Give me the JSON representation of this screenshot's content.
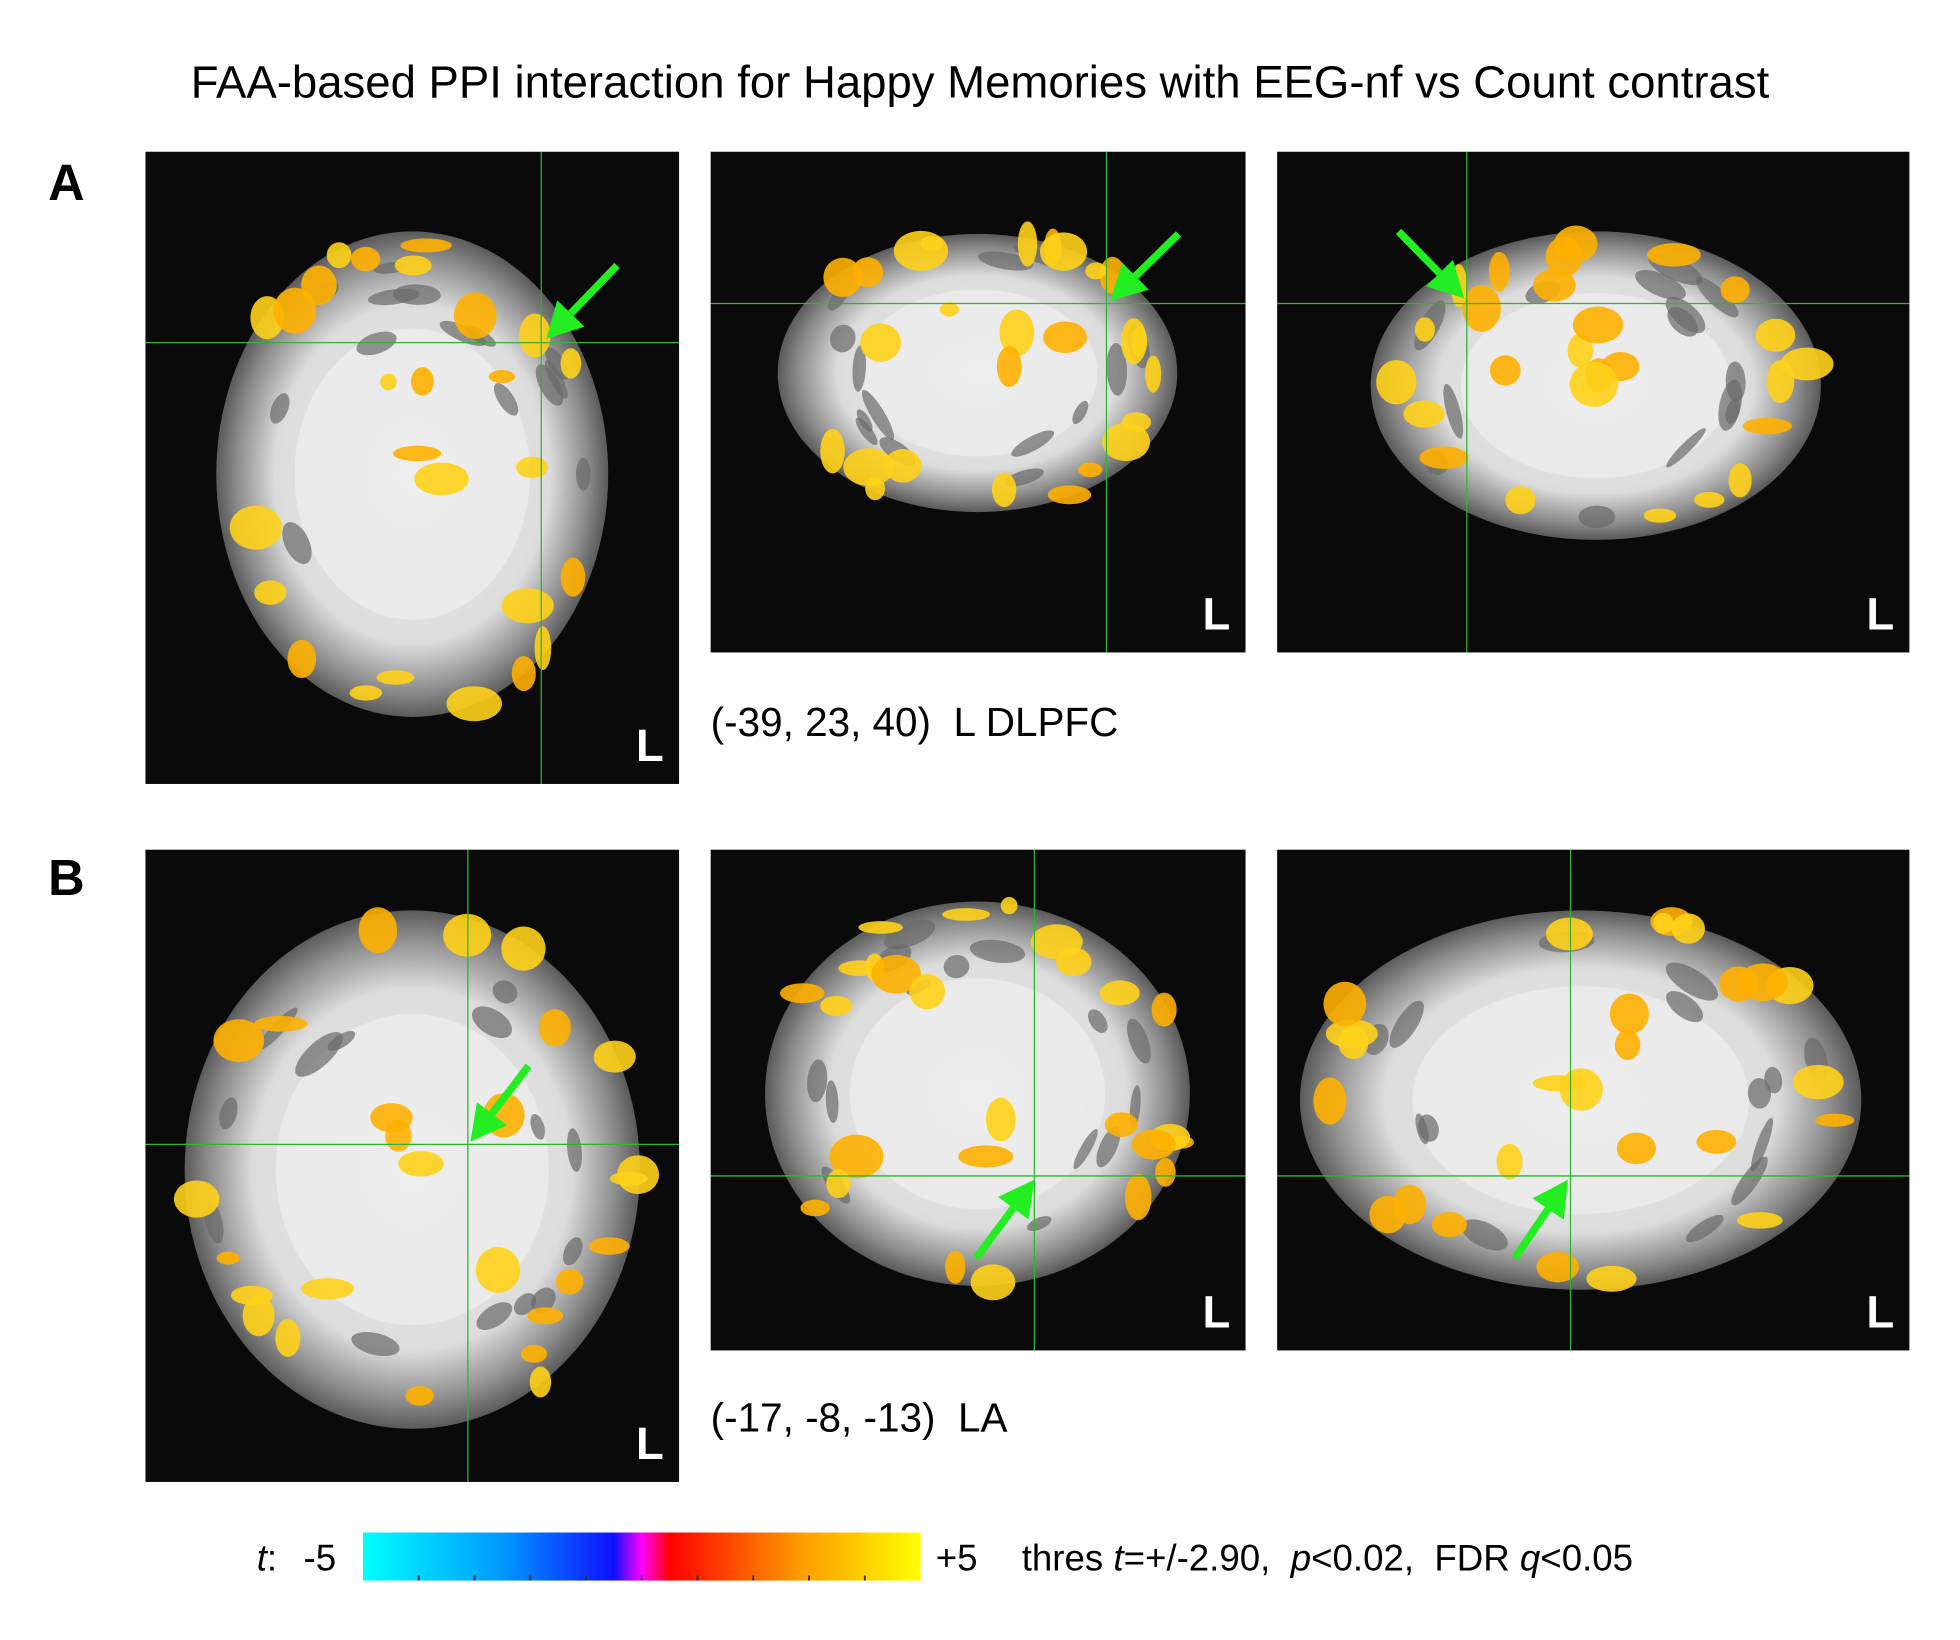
{
  "title": "FAA-based PPI interaction for Happy Memories with EEG-nf vs Count contrast",
  "panels": [
    {
      "label": "A",
      "location": {
        "coords": "(-39, 23, 40)",
        "region": "L DLPFC"
      },
      "views": [
        {
          "side": "L"
        },
        {
          "side": "L"
        },
        {
          "side": "L"
        }
      ]
    },
    {
      "label": "B",
      "location": {
        "coords": "(-17, -8, -13)",
        "region": "LA"
      },
      "views": [
        {
          "side": "L"
        },
        {
          "side": "L"
        },
        {
          "side": "L"
        }
      ]
    }
  ],
  "colorbar": {
    "symbol": "t",
    "separator": ":",
    "min": "-5",
    "max": "+5",
    "threshold": [
      "thres ",
      "t",
      "=+/-2.90,  ",
      "p",
      "<0.02,  FDR ",
      "q",
      "<0.05"
    ]
  }
}
